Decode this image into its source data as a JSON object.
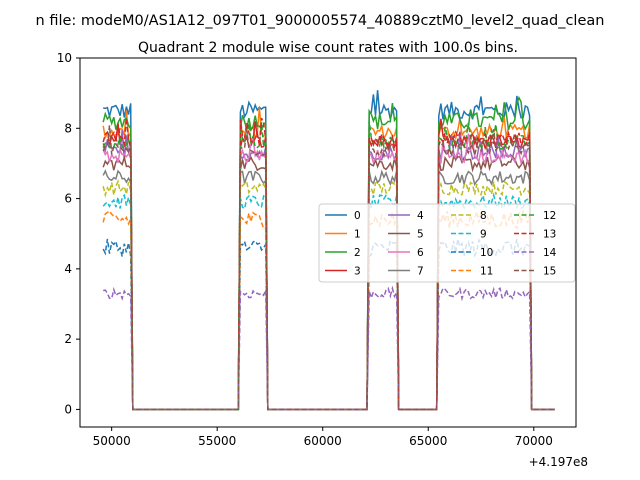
{
  "chart_data": {
    "type": "line",
    "suptitle": "n file: modeM0/AS1A12_097T01_9000005574_40889cztM0_level2_quad_clean",
    "title": "Quadrant 2 module wise count rates with 100.0s bins.",
    "xlabel": "",
    "ylabel": "",
    "x_offset_label": "+4.197e8",
    "xlim": [
      48500,
      72000
    ],
    "ylim": [
      -0.5,
      10
    ],
    "xticks": [
      50000,
      55000,
      60000,
      65000,
      70000
    ],
    "yticks": [
      0,
      2,
      4,
      6,
      8,
      10
    ],
    "gaps": [
      [
        51000,
        56000
      ],
      [
        57400,
        62150
      ],
      [
        63600,
        65400
      ],
      [
        69900,
        71000
      ]
    ],
    "x_start": 49600,
    "legend_position": "center-right",
    "series": [
      {
        "name": "0",
        "level": 8.5,
        "noise": 0.25,
        "color": "#1f77b4",
        "dash": "solid"
      },
      {
        "name": "1",
        "level": 7.9,
        "noise": 0.2,
        "color": "#ff7f0e",
        "dash": "solid"
      },
      {
        "name": "2",
        "level": 8.2,
        "noise": 0.25,
        "color": "#2ca02c",
        "dash": "solid"
      },
      {
        "name": "3",
        "level": 7.6,
        "noise": 0.2,
        "color": "#d62728",
        "dash": "solid"
      },
      {
        "name": "4",
        "level": 7.3,
        "noise": 0.2,
        "color": "#9467bd",
        "dash": "solid"
      },
      {
        "name": "5",
        "level": 7.0,
        "noise": 0.2,
        "color": "#8c564b",
        "dash": "solid"
      },
      {
        "name": "6",
        "level": 7.2,
        "noise": 0.2,
        "color": "#e377c2",
        "dash": "solid"
      },
      {
        "name": "7",
        "level": 6.6,
        "noise": 0.2,
        "color": "#7f7f7f",
        "dash": "solid"
      },
      {
        "name": "8",
        "level": 6.3,
        "noise": 0.2,
        "color": "#bcbd22",
        "dash": "dashed"
      },
      {
        "name": "9",
        "level": 5.9,
        "noise": 0.2,
        "color": "#17becf",
        "dash": "dashed"
      },
      {
        "name": "10",
        "level": 4.6,
        "noise": 0.25,
        "color": "#1f77b4",
        "dash": "dashed"
      },
      {
        "name": "11",
        "level": 5.4,
        "noise": 0.25,
        "color": "#ff7f0e",
        "dash": "dashed"
      },
      {
        "name": "12",
        "level": 7.6,
        "noise": 0.2,
        "color": "#2ca02c",
        "dash": "dashed"
      },
      {
        "name": "13",
        "level": 7.7,
        "noise": 0.2,
        "color": "#d62728",
        "dash": "dashed"
      },
      {
        "name": "14",
        "level": 3.3,
        "noise": 0.15,
        "color": "#9467bd",
        "dash": "dashed"
      },
      {
        "name": "15",
        "level": 7.4,
        "noise": 0.2,
        "color": "#8c564b",
        "dash": "dashed"
      }
    ]
  }
}
